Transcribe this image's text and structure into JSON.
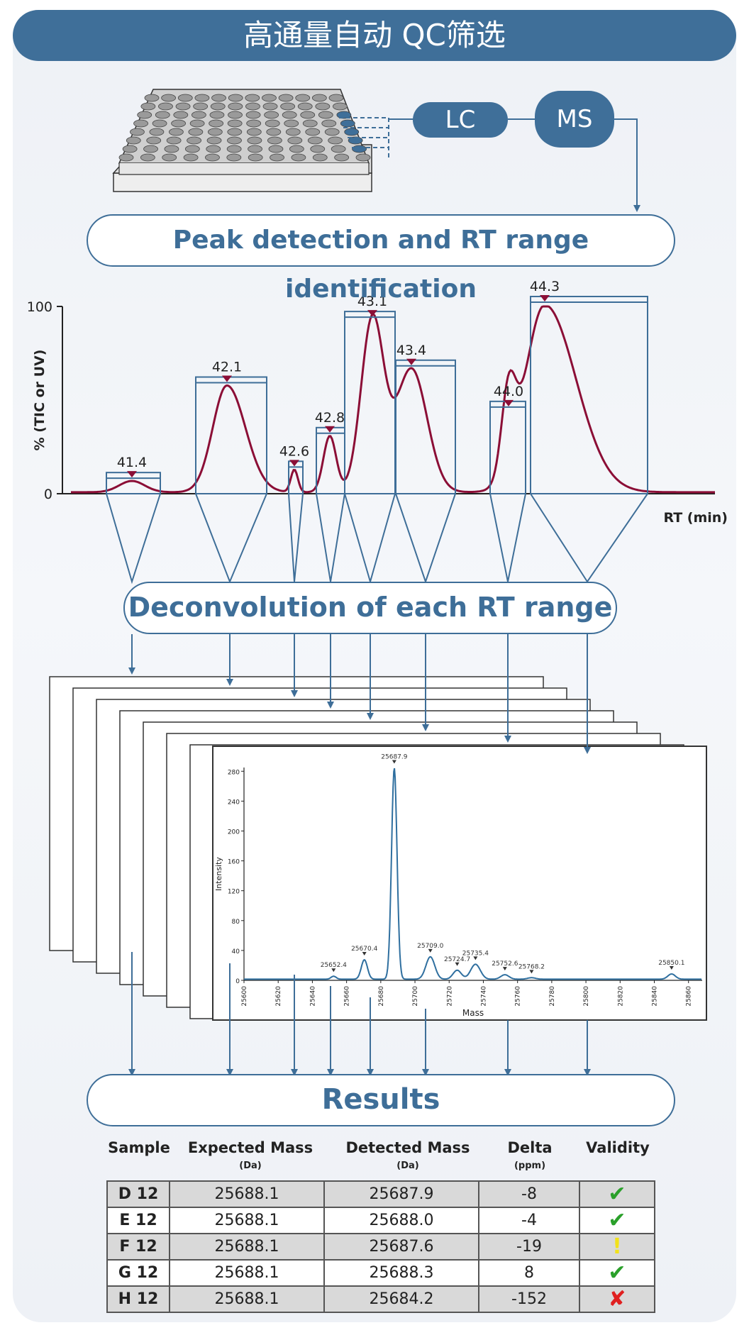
{
  "banner": {
    "title": "高通量自动 QC筛选"
  },
  "instruments": {
    "lc": "LC",
    "ms": "MS"
  },
  "steps": {
    "peak_detection": "Peak detection and RT range identification",
    "deconvolution": "Deconvolution of each RT range",
    "results": "Results"
  },
  "chromatogram": {
    "ylabel": "% (TIC or UV)",
    "xlabel": "RT (min)",
    "yticks": [
      "100",
      "0"
    ],
    "peak_labels": [
      "41.4",
      "42.1",
      "42.6",
      "42.8",
      "43.1",
      "43.4",
      "44.0",
      "44.3"
    ]
  },
  "spectrum": {
    "ylabel": "Intensity",
    "xlabel": "Mass",
    "yticks": [
      "0",
      "40",
      "80",
      "120",
      "160",
      "200",
      "240",
      "280"
    ],
    "xticks": [
      "25600",
      "25620",
      "25640",
      "25660",
      "25680",
      "25700",
      "25720",
      "25740",
      "25760",
      "25780",
      "25800",
      "25820",
      "25840",
      "25860"
    ],
    "peak_labels": [
      "25652.4",
      "25670.4",
      "25687.9",
      "25709.0",
      "25724.7",
      "25735.4",
      "25752.6",
      "25768.2",
      "25850.1"
    ]
  },
  "chart_data": [
    {
      "type": "line",
      "title": "",
      "xlabel": "RT (min)",
      "ylabel": "% (TIC or UV)",
      "ylim": [
        0,
        100
      ],
      "peaks": [
        {
          "rt": 41.4,
          "height": 6
        },
        {
          "rt": 42.1,
          "height": 57
        },
        {
          "rt": 42.6,
          "height": 12
        },
        {
          "rt": 42.8,
          "height": 30
        },
        {
          "rt": 43.1,
          "height": 92
        },
        {
          "rt": 43.4,
          "height": 66
        },
        {
          "rt": 44.0,
          "height": 44
        },
        {
          "rt": 44.3,
          "height": 100
        }
      ]
    },
    {
      "type": "line",
      "title": "",
      "xlabel": "Mass",
      "ylabel": "Intensity",
      "xlim": [
        25600,
        25868
      ],
      "ylim": [
        0,
        285
      ],
      "peaks": [
        {
          "mass": 25652.4,
          "intensity": 4
        },
        {
          "mass": 25670.4,
          "intensity": 26
        },
        {
          "mass": 25687.9,
          "intensity": 283
        },
        {
          "mass": 25709.0,
          "intensity": 30
        },
        {
          "mass": 25724.7,
          "intensity": 12
        },
        {
          "mass": 25735.4,
          "intensity": 20
        },
        {
          "mass": 25752.6,
          "intensity": 6
        },
        {
          "mass": 25768.2,
          "intensity": 2
        },
        {
          "mass": 25850.1,
          "intensity": 7
        }
      ]
    }
  ],
  "table": {
    "headers": [
      {
        "label": "Sample",
        "unit": ""
      },
      {
        "label": "Expected Mass",
        "unit": "(Da)"
      },
      {
        "label": "Detected Mass",
        "unit": "(Da)"
      },
      {
        "label": "Delta",
        "unit": "(ppm)"
      },
      {
        "label": "Validity",
        "unit": ""
      }
    ],
    "rows": [
      {
        "sample": "D 12",
        "expected": "25688.1",
        "detected": "25687.9",
        "delta": "-8",
        "validity": "pass"
      },
      {
        "sample": "E 12",
        "expected": "25688.1",
        "detected": "25688.0",
        "delta": "-4",
        "validity": "pass"
      },
      {
        "sample": "F 12",
        "expected": "25688.1",
        "detected": "25687.6",
        "delta": "-19",
        "validity": "warning"
      },
      {
        "sample": "G 12",
        "expected": "25688.1",
        "detected": "25688.3",
        "delta": "8",
        "validity": "pass"
      },
      {
        "sample": "H 12",
        "expected": "25688.1",
        "detected": "25684.2",
        "delta": "-152",
        "validity": "fail"
      }
    ],
    "validity_icons": {
      "pass": "check-icon",
      "warning": "exclamation-icon",
      "fail": "cross-icon"
    },
    "validity_colors": {
      "pass": "#2aa02a",
      "warning": "#f2e21a",
      "fail": "#e02020"
    }
  },
  "colors": {
    "accent": "#3f6f99",
    "trace": "#8b0e36",
    "spectrum_line": "#2f6f9f"
  }
}
